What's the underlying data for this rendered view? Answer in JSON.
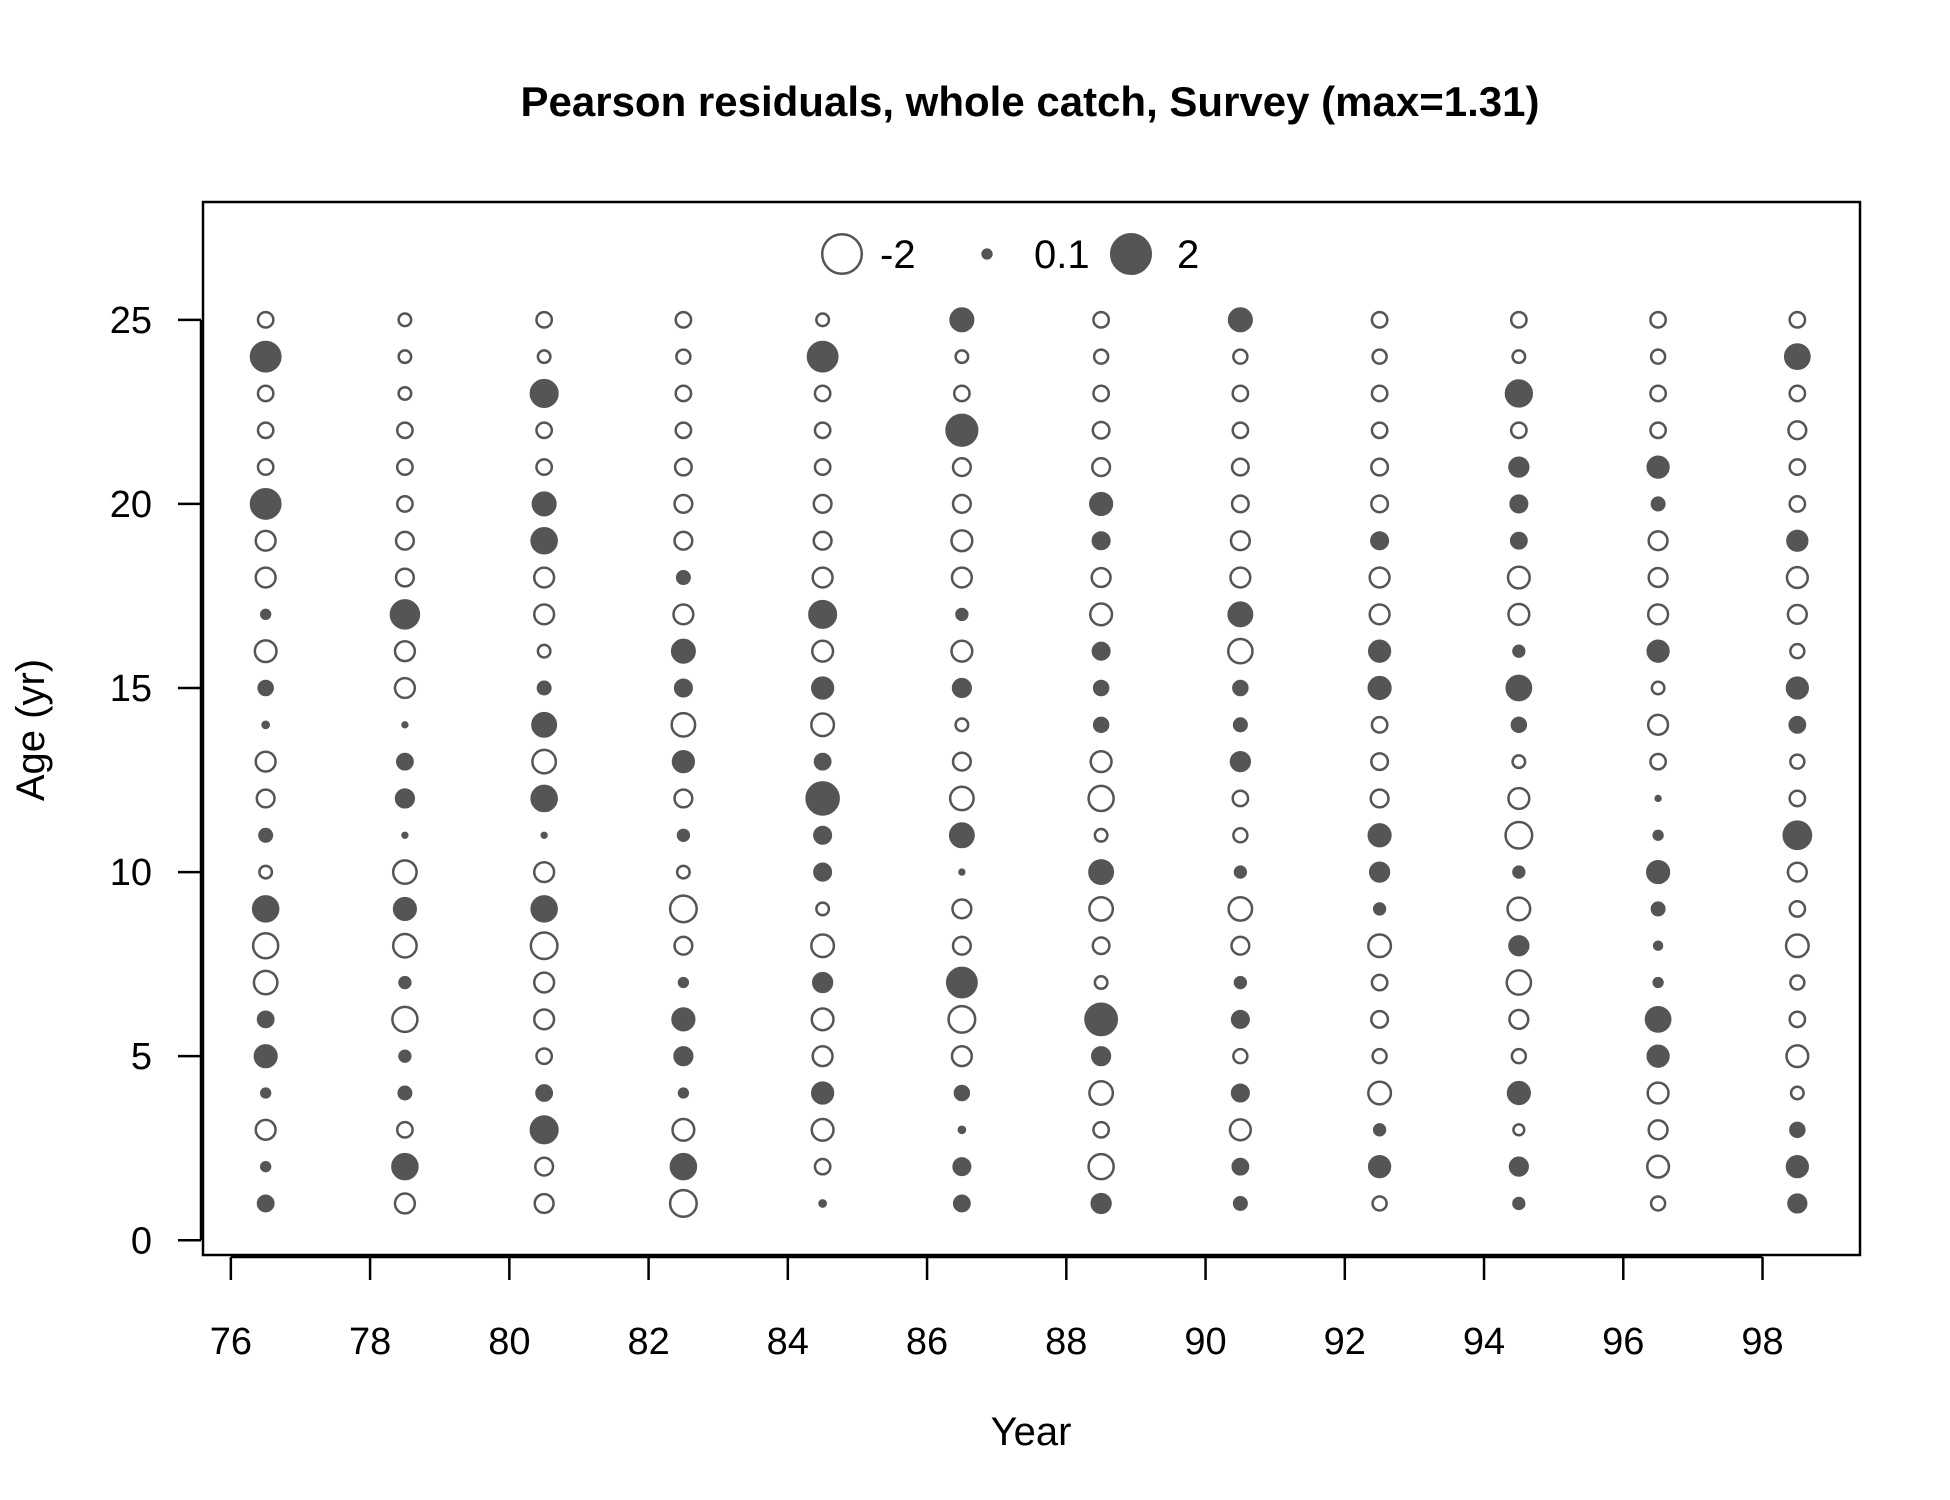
{
  "chart_data": {
    "type": "bubble",
    "title": "Pearson residuals, whole catch, Survey (max=1.31)",
    "xlabel": "Year",
    "ylabel": "Age (yr)",
    "xlim": [
      75.6,
      99.4
    ],
    "ylim": [
      -0.4,
      28.2
    ],
    "xticks": [
      76,
      78,
      80,
      82,
      84,
      86,
      88,
      90,
      92,
      94,
      96,
      98
    ],
    "xtick_labels": [
      "76",
      "78",
      "80",
      "82",
      "84",
      "86",
      "88",
      "90",
      "92",
      "94",
      "96",
      "98"
    ],
    "yticks": [
      0,
      5,
      10,
      15,
      20,
      25
    ],
    "ytick_labels": [
      "0",
      "5",
      "10",
      "15",
      "20",
      "25"
    ],
    "legend": {
      "placement": "top-center",
      "entries": [
        {
          "label": "-2",
          "value": -2
        },
        {
          "label": "0.1",
          "value": 0.1
        },
        {
          "label": "2",
          "value": 2
        }
      ]
    },
    "colors": {
      "positive_fill": "#555555",
      "negative_fill": "#ffffff",
      "stroke": "#555555"
    },
    "ages": [
      1,
      2,
      3,
      4,
      5,
      6,
      7,
      8,
      9,
      10,
      11,
      12,
      13,
      14,
      15,
      16,
      17,
      18,
      19,
      20,
      21,
      22,
      23,
      24,
      25
    ],
    "series": [
      {
        "year": 76.5,
        "residuals": [
          0.3,
          0.1,
          -0.5,
          0.1,
          0.6,
          0.3,
          -0.7,
          -0.8,
          0.8,
          -0.2,
          0.2,
          -0.4,
          -0.5,
          0.05,
          0.25,
          -0.6,
          0.1,
          -0.5,
          -0.5,
          1.1,
          -0.3,
          -0.3,
          -0.3,
          1.1,
          -0.3
        ]
      },
      {
        "year": 78.5,
        "residuals": [
          -0.5,
          0.8,
          -0.3,
          0.2,
          0.15,
          -0.8,
          0.15,
          -0.7,
          0.6,
          -0.7,
          0.03,
          0.4,
          0.3,
          0.03,
          -0.5,
          -0.5,
          1.0,
          -0.4,
          -0.4,
          -0.3,
          -0.3,
          -0.3,
          -0.2,
          -0.2,
          -0.2
        ]
      },
      {
        "year": 80.5,
        "residuals": [
          -0.45,
          -0.4,
          0.9,
          0.3,
          -0.3,
          -0.5,
          -0.5,
          -0.9,
          0.8,
          -0.5,
          0.03,
          0.8,
          -0.7,
          0.7,
          0.2,
          -0.2,
          -0.5,
          -0.5,
          0.8,
          0.65,
          -0.3,
          -0.3,
          0.9,
          -0.2,
          -0.3
        ]
      },
      {
        "year": 82.5,
        "residuals": [
          -0.9,
          0.8,
          -0.6,
          0.1,
          0.4,
          0.6,
          0.1,
          -0.4,
          -0.9,
          -0.2,
          0.15,
          -0.4,
          0.55,
          -0.7,
          0.35,
          0.65,
          -0.5,
          0.2,
          -0.4,
          -0.4,
          -0.35,
          -0.3,
          -0.3,
          -0.25,
          -0.3
        ]
      },
      {
        "year": 84.5,
        "residuals": [
          0.05,
          -0.3,
          -0.6,
          0.55,
          -0.5,
          -0.6,
          0.45,
          -0.65,
          -0.2,
          0.35,
          0.35,
          1.31,
          0.3,
          -0.65,
          0.55,
          -0.55,
          0.9,
          -0.5,
          -0.4,
          -0.4,
          -0.3,
          -0.3,
          -0.3,
          1.1,
          -0.2
        ]
      },
      {
        "year": 86.5,
        "residuals": [
          0.3,
          0.35,
          0.05,
          0.25,
          -0.5,
          -0.9,
          1.1,
          -0.4,
          -0.45,
          0.03,
          0.7,
          -0.7,
          -0.4,
          -0.2,
          0.4,
          -0.55,
          0.15,
          -0.5,
          -0.55,
          -0.4,
          -0.4,
          1.2,
          -0.3,
          -0.2,
          0.65
        ]
      },
      {
        "year": 88.5,
        "residuals": [
          0.45,
          -0.8,
          -0.3,
          -0.7,
          0.4,
          1.25,
          -0.2,
          -0.35,
          -0.7,
          0.7,
          -0.2,
          -0.8,
          -0.55,
          0.25,
          0.25,
          0.35,
          -0.6,
          -0.45,
          0.35,
          0.6,
          -0.4,
          -0.35,
          -0.3,
          -0.25,
          -0.3
        ]
      },
      {
        "year": 90.5,
        "residuals": [
          0.2,
          0.3,
          -0.55,
          0.35,
          -0.25,
          0.35,
          0.15,
          -0.4,
          -0.7,
          0.15,
          -0.25,
          -0.3,
          0.45,
          0.2,
          0.25,
          -0.75,
          0.7,
          -0.5,
          -0.45,
          -0.35,
          -0.35,
          -0.3,
          -0.3,
          -0.25,
          0.65
        ]
      },
      {
        "year": 92.5,
        "residuals": [
          -0.25,
          0.55,
          0.15,
          -0.65,
          -0.25,
          -0.35,
          -0.3,
          -0.65,
          0.15,
          0.45,
          0.6,
          -0.4,
          -0.35,
          -0.3,
          0.6,
          0.55,
          -0.5,
          -0.5,
          0.35,
          -0.35,
          -0.35,
          -0.3,
          -0.3,
          -0.25,
          -0.3
        ]
      },
      {
        "year": 94.5,
        "residuals": [
          0.15,
          0.4,
          -0.15,
          0.6,
          -0.25,
          -0.45,
          -0.75,
          0.45,
          -0.65,
          0.15,
          -0.9,
          -0.55,
          -0.2,
          0.25,
          0.75,
          0.15,
          -0.55,
          -0.6,
          0.3,
          0.35,
          0.45,
          -0.3,
          0.85,
          -0.2,
          -0.3
        ]
      },
      {
        "year": 96.5,
        "residuals": [
          -0.25,
          -0.6,
          -0.45,
          -0.55,
          0.55,
          0.75,
          0.1,
          0.08,
          0.2,
          0.6,
          0.1,
          0.03,
          -0.3,
          -0.5,
          -0.2,
          0.55,
          -0.5,
          -0.45,
          -0.45,
          0.2,
          0.55,
          -0.3,
          -0.3,
          -0.25,
          -0.3
        ]
      },
      {
        "year": 98.5,
        "residuals": [
          0.4,
          0.55,
          0.25,
          -0.2,
          -0.6,
          -0.3,
          -0.25,
          -0.65,
          -0.3,
          -0.45,
          0.95,
          -0.3,
          -0.25,
          0.3,
          0.55,
          -0.25,
          -0.45,
          -0.55,
          0.5,
          -0.3,
          -0.3,
          -0.4,
          -0.3,
          0.75,
          -0.3
        ]
      }
    ]
  }
}
